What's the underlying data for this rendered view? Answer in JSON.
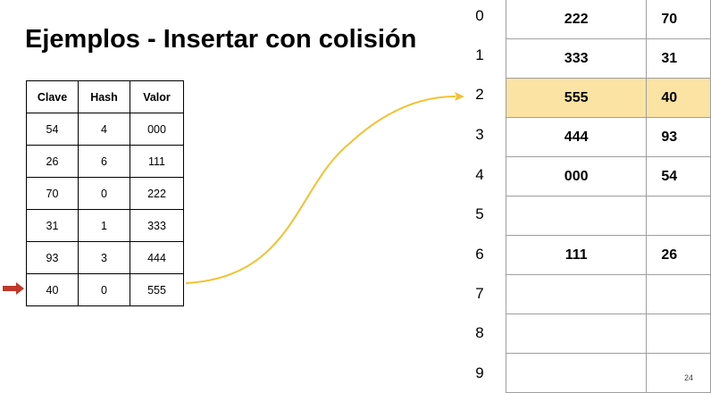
{
  "title": "Ejemplos - Insertar con colisión",
  "key_table": {
    "headers": [
      "Clave",
      "Hash",
      "Valor"
    ],
    "rows": [
      [
        "54",
        "4",
        "000"
      ],
      [
        "26",
        "6",
        "111"
      ],
      [
        "70",
        "0",
        "222"
      ],
      [
        "31",
        "1",
        "333"
      ],
      [
        "93",
        "3",
        "444"
      ],
      [
        "40",
        "0",
        "555"
      ]
    ]
  },
  "hash_table": {
    "indices": [
      "0",
      "1",
      "2",
      "3",
      "4",
      "5",
      "6",
      "7",
      "8",
      "9"
    ],
    "rows": [
      {
        "value": "222",
        "key": "70"
      },
      {
        "value": "333",
        "key": "31"
      },
      {
        "value": "555",
        "key": "40"
      },
      {
        "value": "444",
        "key": "93"
      },
      {
        "value": "000",
        "key": "54"
      },
      {
        "value": "",
        "key": ""
      },
      {
        "value": "111",
        "key": "26"
      },
      {
        "value": "",
        "key": ""
      },
      {
        "value": "",
        "key": ""
      },
      {
        "value": "",
        "key": ""
      }
    ]
  },
  "page_number": "24",
  "colors": {
    "highlight": "#fbe3a4",
    "curve": "#f1c232",
    "marker": "#c0392b"
  }
}
